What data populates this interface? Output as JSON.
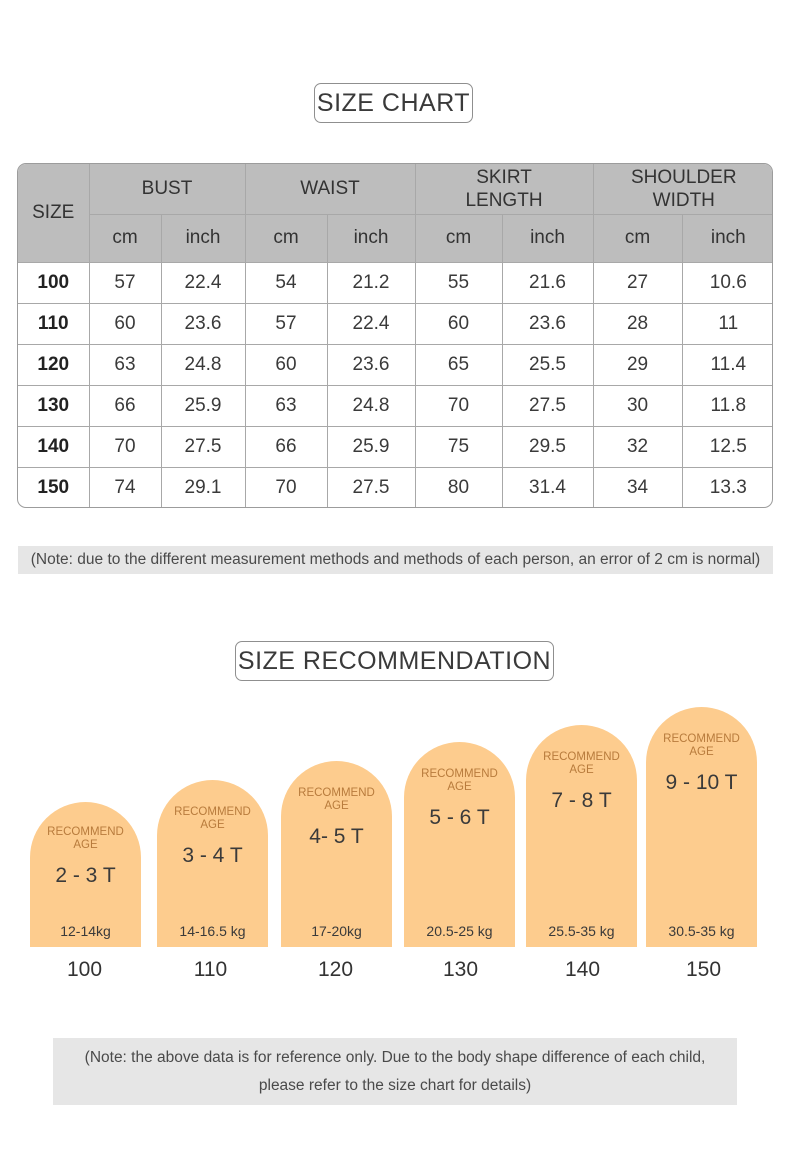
{
  "chart_title": "SIZE CHART",
  "table": {
    "size_header": "SIZE",
    "groups": [
      "BUST",
      "WAIST",
      "SKIRT LENGTH",
      "SHOULDER WIDTH"
    ],
    "group_lines": [
      [
        "BUST"
      ],
      [
        "WAIST"
      ],
      [
        "SKIRT",
        "LENGTH"
      ],
      [
        "SHOULDER",
        "WIDTH"
      ]
    ],
    "units": [
      "cm",
      "inch",
      "cm",
      "inch",
      "cm",
      "inch",
      "cm",
      "inch"
    ],
    "rows": [
      [
        "100",
        "57",
        "22.4",
        "54",
        "21.2",
        "55",
        "21.6",
        "27",
        "10.6"
      ],
      [
        "110",
        "60",
        "23.6",
        "57",
        "22.4",
        "60",
        "23.6",
        "28",
        "11"
      ],
      [
        "120",
        "63",
        "24.8",
        "60",
        "23.6",
        "65",
        "25.5",
        "29",
        "11.4"
      ],
      [
        "130",
        "66",
        "25.9",
        "63",
        "24.8",
        "70",
        "27.5",
        "30",
        "11.8"
      ],
      [
        "140",
        "70",
        "27.5",
        "66",
        "25.9",
        "75",
        "29.5",
        "32",
        "12.5"
      ],
      [
        "150",
        "74",
        "29.1",
        "70",
        "27.5",
        "80",
        "31.4",
        "34",
        "13.3"
      ]
    ]
  },
  "note1": "(Note: due to the different measurement methods and methods of each person, an error of 2 cm is normal)",
  "rec_title": "SIZE RECOMMENDATION",
  "recommendations": [
    {
      "label_line1": "RECOMMEND",
      "label_line2": "AGE",
      "age": "2 - 3 T",
      "weight": "12-14kg",
      "size": "100"
    },
    {
      "label_line1": "RECOMMEND",
      "label_line2": "AGE",
      "age": "3 - 4 T",
      "weight": "14-16.5 kg",
      "size": "110"
    },
    {
      "label_line1": "RECOMMEND",
      "label_line2": "AGE",
      "age": "4- 5 T",
      "weight": "17-20kg",
      "size": "120"
    },
    {
      "label_line1": "RECOMMEND",
      "label_line2": "AGE",
      "age": "5 - 6 T",
      "weight": "20.5-25 kg",
      "size": "130"
    },
    {
      "label_line1": "RECOMMEND",
      "label_line2": "AGE",
      "age": "7 - 8 T",
      "weight": "25.5-35 kg",
      "size": "140"
    },
    {
      "label_line1": "RECOMMEND",
      "label_line2": "AGE",
      "age": "9 - 10 T",
      "weight": "30.5-35 kg",
      "size": "150"
    }
  ],
  "note2": {
    "line1": "(Note: the above data is for reference only. Due to the body shape difference of each child,",
    "line2": "please refer to the size chart for details)"
  },
  "colors": {
    "arch_fill": "#fdcc8e",
    "recommend_label": "#b87b3c",
    "header_fill": "#bdbdbd",
    "note_fill": "#e6e6e6"
  }
}
